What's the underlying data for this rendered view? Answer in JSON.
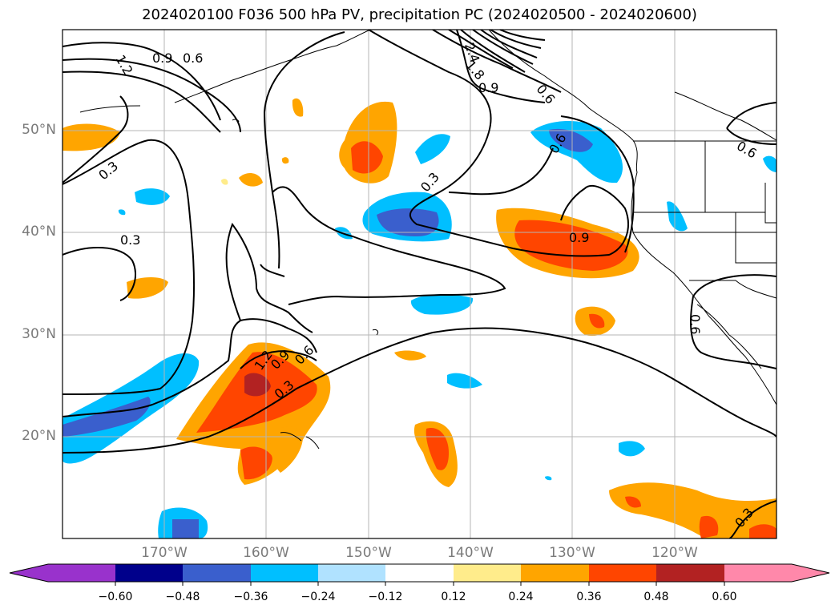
{
  "title": "2024020100 F036 500 hPa PV, precipitation PC (2024020500 - 2024020600)",
  "lat_labels": [
    "50°N",
    "40°N",
    "30°N",
    "20°N"
  ],
  "lon_labels": [
    "170°W",
    "160°W",
    "150°W",
    "140°W",
    "130°W",
    "120°W"
  ],
  "colorbar": {
    "ticks": [
      "−0.60",
      "−0.48",
      "−0.36",
      "−0.24",
      "−0.12",
      "0.12",
      "0.24",
      "0.36",
      "0.48",
      "0.60"
    ],
    "colors": [
      "#9932cc",
      "#00008b",
      "#3a5fcd",
      "#00bfff",
      "#b0e2ff",
      "#ffffff",
      "#ffec8b",
      "#ffa500",
      "#ff4500",
      "#b22222",
      "#ff88aa"
    ]
  },
  "contour_labels": [
    "1.2",
    "0.9",
    "0.6",
    "0.3",
    "0.3",
    "2.4",
    "1.8",
    "0.9",
    "0.6",
    "0.6",
    "0.3",
    "0.6",
    "0.9",
    "0.9",
    "0.6",
    "0.3",
    "0.6",
    "0.3",
    "1.2"
  ]
}
